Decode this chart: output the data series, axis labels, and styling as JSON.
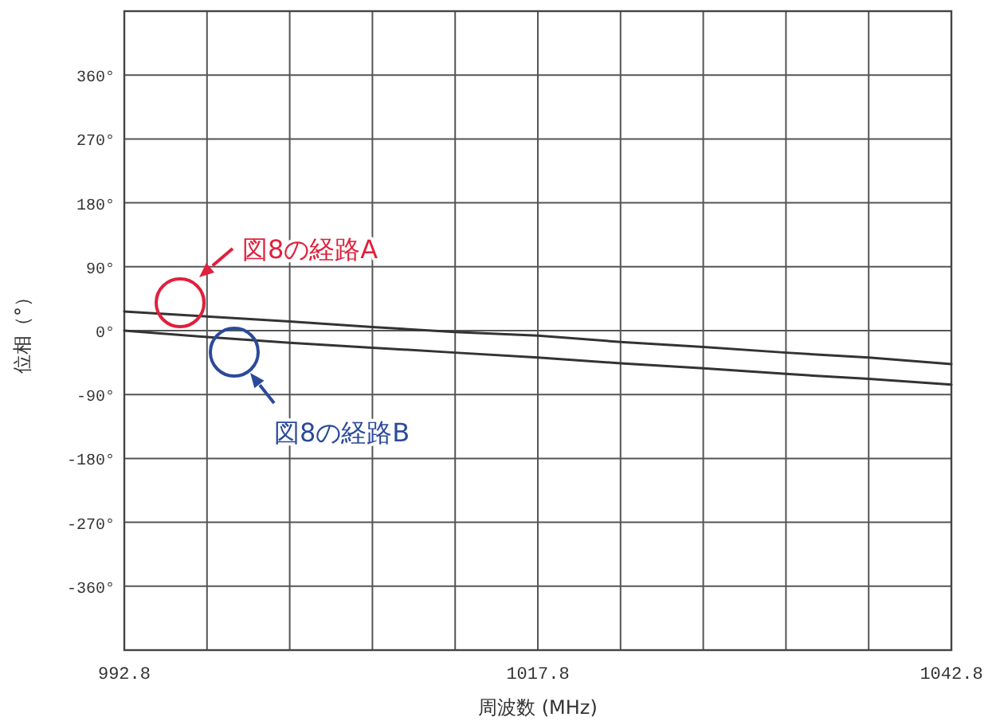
{
  "chart_data": {
    "type": "line",
    "xlabel": "周波数 (MHz)",
    "ylabel": "位相（°）",
    "x": [
      992.8,
      997.8,
      1002.8,
      1007.8,
      1012.8,
      1017.8,
      1022.8,
      1027.8,
      1032.8,
      1037.8,
      1042.8
    ],
    "series": [
      {
        "color": "#333333",
        "values": [
          27,
          20,
          13,
          5,
          -2,
          -7,
          -16,
          -23,
          -31,
          -38,
          -47
        ]
      },
      {
        "color": "#333333",
        "values": [
          0,
          -9,
          -17,
          -24,
          -31,
          -38,
          -46,
          -53,
          -61,
          -68,
          -76
        ]
      }
    ],
    "xlim": [
      992.8,
      1042.8
    ],
    "xticks": [
      {
        "value": 992.8,
        "label": "992.8"
      },
      {
        "value": 997.8,
        "label": null
      },
      {
        "value": 1002.8,
        "label": null
      },
      {
        "value": 1007.8,
        "label": null
      },
      {
        "value": 1012.8,
        "label": null
      },
      {
        "value": 1017.8,
        "label": "1017.8"
      },
      {
        "value": 1022.8,
        "label": null
      },
      {
        "value": 1027.8,
        "label": null
      },
      {
        "value": 1032.8,
        "label": null
      },
      {
        "value": 1037.8,
        "label": null
      },
      {
        "value": 1042.8,
        "label": "1042.8"
      }
    ],
    "ylim": [
      -450,
      450
    ],
    "yticks": [
      {
        "value": 360,
        "label": "360°"
      },
      {
        "value": 270,
        "label": "270°"
      },
      {
        "value": 180,
        "label": "180°"
      },
      {
        "value": 90,
        "label": "90°"
      },
      {
        "value": 0,
        "label": "0°"
      },
      {
        "value": -90,
        "label": "-90°"
      },
      {
        "value": -180,
        "label": "-180°"
      },
      {
        "value": -270,
        "label": "-270°"
      },
      {
        "value": -360,
        "label": "-360°"
      }
    ],
    "grid": true,
    "marker": "none",
    "line_style": "solid",
    "annotations": [
      "図8の経路A",
      "図8の経路B"
    ]
  }
}
